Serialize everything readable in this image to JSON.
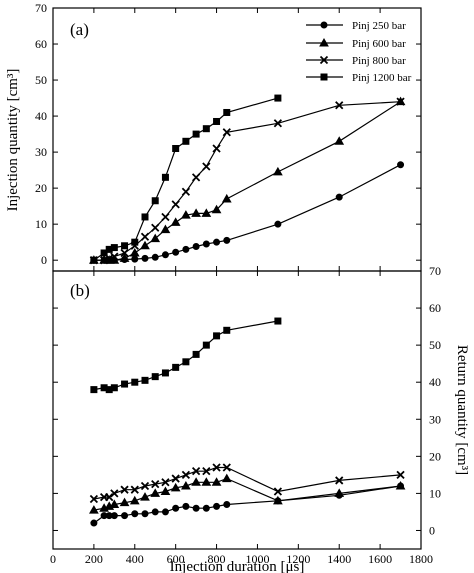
{
  "chart_data": {
    "type": "line",
    "xlabel": "Injection duration [μs]",
    "x_ticks": [
      "0",
      "200",
      "400",
      "600",
      "800",
      "1000",
      "1200",
      "1400",
      "1600",
      "1800"
    ],
    "xlim": [
      0,
      1800
    ],
    "panels": [
      {
        "id": "a",
        "panel_label": "(a)",
        "ylabel_left": "Injection quantity [cm³]",
        "ylim": [
          -3,
          70
        ],
        "y_ticks": [
          "0",
          "10",
          "20",
          "30",
          "40",
          "50",
          "60",
          "70"
        ],
        "legend_position": "top-right",
        "series": [
          {
            "name": "Pinj 250 bar",
            "marker": "circle",
            "x": [
              200,
              250,
              275,
              300,
              350,
              400,
              450,
              500,
              550,
              600,
              650,
              700,
              750,
              800,
              850,
              1100,
              1400,
              1700
            ],
            "y": [
              0,
              0,
              0,
              0,
              0.2,
              0.3,
              0.5,
              0.8,
              1.5,
              2.2,
              3,
              3.8,
              4.5,
              5.0,
              5.5,
              10,
              17.5,
              26.5
            ]
          },
          {
            "name": "Pinj 600 bar",
            "marker": "triangle",
            "x": [
              200,
              250,
              275,
              300,
              350,
              400,
              450,
              500,
              550,
              600,
              650,
              700,
              750,
              800,
              850,
              1100,
              1400,
              1700
            ],
            "y": [
              0,
              0,
              0,
              0,
              0.5,
              2,
              4,
              6,
              8.5,
              10.5,
              12.5,
              13,
              13,
              14,
              17,
              24.5,
              33,
              44
            ]
          },
          {
            "name": "Pinj 800 bar",
            "marker": "cross",
            "x": [
              200,
              250,
              275,
              300,
              350,
              400,
              450,
              500,
              550,
              600,
              650,
              700,
              750,
              800,
              850,
              1100,
              1400,
              1700
            ],
            "y": [
              0,
              0,
              0.5,
              1,
              2,
              4,
              6.5,
              9,
              12,
              15.5,
              19,
              23,
              26,
              31,
              35.5,
              38,
              43,
              44
            ]
          },
          {
            "name": "Pinj 1200 bar",
            "marker": "square",
            "x": [
              200,
              250,
              275,
              300,
              350,
              400,
              450,
              500,
              550,
              600,
              650,
              700,
              750,
              800,
              850,
              1100
            ],
            "y": [
              0,
              2,
              3,
              3.5,
              4,
              5,
              12,
              16.5,
              23,
              31,
              33,
              35,
              36.5,
              38.5,
              41,
              45
            ]
          }
        ]
      },
      {
        "id": "b",
        "panel_label": "(b)",
        "ylabel_right": "Return quantity [cm³]",
        "ylim": [
          -5,
          70
        ],
        "y_ticks": [
          "0",
          "10",
          "20",
          "30",
          "40",
          "50",
          "60",
          "70"
        ],
        "series": [
          {
            "name": "Pinj 250 bar",
            "marker": "circle",
            "x": [
              200,
              250,
              275,
              300,
              350,
              400,
              450,
              500,
              550,
              600,
              650,
              700,
              750,
              800,
              850,
              1100,
              1400,
              1700
            ],
            "y": [
              2,
              4,
              4,
              4,
              4,
              4.5,
              4.5,
              5,
              5,
              6,
              6.5,
              6,
              6,
              6.5,
              7,
              8,
              9.5,
              12
            ]
          },
          {
            "name": "Pinj 600 bar",
            "marker": "triangle",
            "x": [
              200,
              250,
              275,
              300,
              350,
              400,
              450,
              500,
              550,
              600,
              650,
              700,
              750,
              800,
              850,
              1100,
              1400,
              1700
            ],
            "y": [
              5.5,
              6,
              6.5,
              7,
              7.5,
              8,
              9,
              10,
              10.5,
              11.5,
              12,
              13,
              13,
              13,
              14,
              8,
              10,
              12
            ]
          },
          {
            "name": "Pinj 800 bar",
            "marker": "cross",
            "x": [
              200,
              250,
              275,
              300,
              350,
              400,
              450,
              500,
              550,
              600,
              650,
              700,
              750,
              800,
              850,
              1100,
              1400,
              1700
            ],
            "y": [
              8.5,
              9,
              9,
              10,
              11,
              11,
              12,
              12.5,
              13,
              14,
              15,
              16,
              16,
              17,
              17,
              10.5,
              13.5,
              15
            ]
          },
          {
            "name": "Pinj 1200 bar",
            "marker": "square",
            "x": [
              200,
              250,
              275,
              300,
              350,
              400,
              450,
              500,
              550,
              600,
              650,
              700,
              750,
              800,
              850,
              1100
            ],
            "y": [
              38,
              38.5,
              38,
              38.5,
              39.5,
              40,
              40.5,
              41.5,
              42.5,
              44,
              45.5,
              47.5,
              50,
              52.5,
              54,
              56.5
            ]
          }
        ]
      }
    ]
  }
}
